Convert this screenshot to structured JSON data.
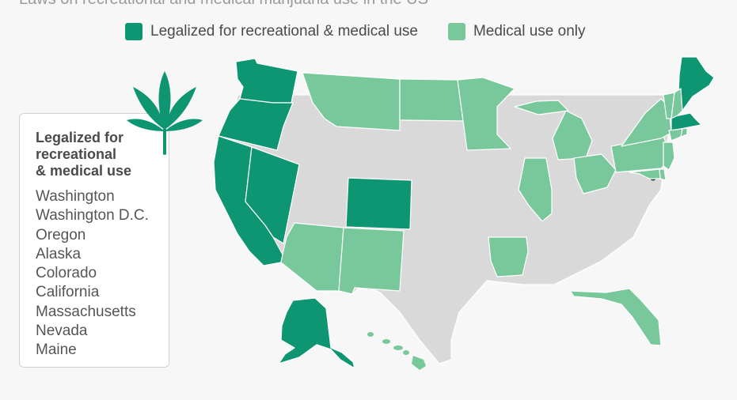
{
  "title": "Laws on recreational and medical marijuana use in the US",
  "colors": {
    "recreational": "#0e9672",
    "medical": "#78c89b",
    "none": "#d9d9d9",
    "background": "#f7f7f7"
  },
  "legend": {
    "recreational_label": "Legalized for recreational & medical use",
    "medical_label": "Medical use only"
  },
  "info_box": {
    "title_lines": [
      "Legalized for",
      "recreational",
      "& medical use"
    ],
    "states": [
      "Washington",
      "Washington D.C.",
      "Oregon",
      "Alaska",
      "Colorado",
      "California",
      "Massachusetts",
      "Nevada",
      "Maine"
    ]
  },
  "icons": {
    "leaf": "cannabis-leaf-icon"
  },
  "map_data": {
    "recreational_and_medical": [
      "Washington",
      "Washington D.C.",
      "Oregon",
      "Alaska",
      "Colorado",
      "California",
      "Massachusetts",
      "Nevada",
      "Maine"
    ],
    "medical_only": [
      "Montana",
      "North Dakota",
      "Minnesota",
      "Michigan",
      "Illinois",
      "Ohio",
      "Pennsylvania",
      "New York",
      "Vermont",
      "New Hampshire",
      "Connecticut",
      "Rhode Island",
      "New Jersey",
      "Delaware",
      "Maryland",
      "Arizona",
      "New Mexico",
      "Arkansas",
      "Florida",
      "Hawaii"
    ]
  }
}
